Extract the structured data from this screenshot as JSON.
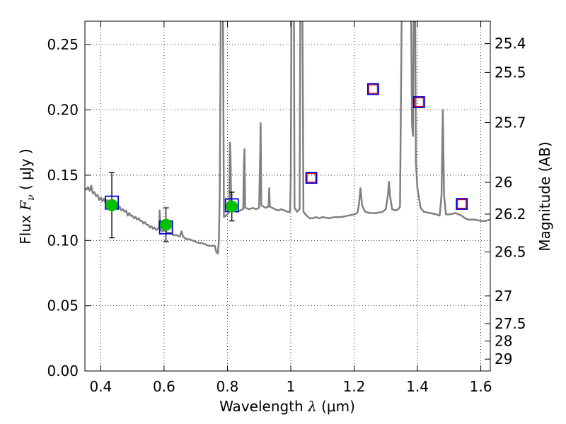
{
  "chart_data": {
    "type": "line",
    "xlabel_prefix": "Wavelength",
    "xlabel_symbol": "λ",
    "xlabel_unit": "(μm)",
    "ylabel_prefix": "Flux",
    "ylabel_symbol": "F",
    "ylabel_subscript": "ν",
    "ylabel_unit": "( μJy )",
    "y2label": "Magnitude (AB)",
    "xlim": [
      0.35,
      1.63
    ],
    "ylim": [
      0.0,
      0.268
    ],
    "x_ticks": [
      0.4,
      0.6,
      0.8,
      1.0,
      1.2,
      1.4,
      1.6
    ],
    "x_tick_labels": [
      "0.4",
      "0.6",
      "0.8",
      "1",
      "1.2",
      "1.4",
      "1.6"
    ],
    "y_ticks": [
      0.0,
      0.05,
      0.1,
      0.15,
      0.2,
      0.25
    ],
    "y_tick_labels": [
      "0.00",
      "0.05",
      "0.10",
      "0.15",
      "0.20",
      "0.25"
    ],
    "mag_ticks": [
      {
        "label": "25.4",
        "flux": 0.2509
      },
      {
        "label": "25.5",
        "flux": 0.2288
      },
      {
        "label": "25.7",
        "flux": 0.1903
      },
      {
        "label": "26",
        "flux": 0.1445
      },
      {
        "label": "26.2",
        "flux": 0.1202
      },
      {
        "label": "26.5",
        "flux": 0.0912
      },
      {
        "label": "27",
        "flux": 0.0575
      },
      {
        "label": "27.5",
        "flux": 0.0363
      },
      {
        "label": "28",
        "flux": 0.0229
      },
      {
        "label": "29",
        "flux": 0.0091
      }
    ],
    "grid": true,
    "colors": {
      "model": "#808080",
      "observed": "#00c000",
      "box": "#0000e0",
      "predicted": "#e00000",
      "errorbar": "#000000"
    },
    "observed_points": [
      {
        "x": 0.435,
        "y": 0.127,
        "yerr": 0.025
      },
      {
        "x": 0.606,
        "y": 0.112,
        "yerr": 0.013
      },
      {
        "x": 0.814,
        "y": 0.126,
        "yerr": 0.011
      }
    ],
    "model_boxes": [
      {
        "x": 0.435,
        "y": 0.129
      },
      {
        "x": 0.606,
        "y": 0.11
      },
      {
        "x": 0.814,
        "y": 0.127
      },
      {
        "x": 1.065,
        "y": 0.148
      },
      {
        "x": 1.26,
        "y": 0.216
      },
      {
        "x": 1.405,
        "y": 0.206
      },
      {
        "x": 1.54,
        "y": 0.128
      }
    ],
    "predicted_points": [
      {
        "x": 1.065,
        "y": 0.148
      },
      {
        "x": 1.26,
        "y": 0.216
      },
      {
        "x": 1.405,
        "y": 0.206
      },
      {
        "x": 1.54,
        "y": 0.128
      }
    ],
    "model_spectrum": [
      [
        0.35,
        0.14
      ],
      [
        0.355,
        0.139
      ],
      [
        0.36,
        0.141
      ],
      [
        0.365,
        0.138
      ],
      [
        0.37,
        0.142
      ],
      [
        0.375,
        0.136
      ],
      [
        0.38,
        0.137
      ],
      [
        0.385,
        0.134
      ],
      [
        0.39,
        0.135
      ],
      [
        0.395,
        0.131
      ],
      [
        0.4,
        0.133
      ],
      [
        0.405,
        0.13
      ],
      [
        0.41,
        0.132
      ],
      [
        0.415,
        0.129
      ],
      [
        0.42,
        0.131
      ],
      [
        0.425,
        0.128
      ],
      [
        0.43,
        0.13
      ],
      [
        0.435,
        0.127
      ],
      [
        0.44,
        0.129
      ],
      [
        0.445,
        0.126
      ],
      [
        0.45,
        0.127
      ],
      [
        0.455,
        0.124
      ],
      [
        0.46,
        0.126
      ],
      [
        0.465,
        0.123
      ],
      [
        0.47,
        0.124
      ],
      [
        0.475,
        0.122
      ],
      [
        0.48,
        0.123
      ],
      [
        0.485,
        0.119
      ],
      [
        0.49,
        0.121
      ],
      [
        0.495,
        0.119
      ],
      [
        0.5,
        0.119
      ],
      [
        0.505,
        0.117
      ],
      [
        0.51,
        0.118
      ],
      [
        0.515,
        0.116
      ],
      [
        0.52,
        0.117
      ],
      [
        0.525,
        0.115
      ],
      [
        0.53,
        0.115
      ],
      [
        0.535,
        0.113
      ],
      [
        0.54,
        0.114
      ],
      [
        0.545,
        0.112
      ],
      [
        0.55,
        0.112
      ],
      [
        0.555,
        0.11
      ],
      [
        0.56,
        0.111
      ],
      [
        0.565,
        0.109
      ],
      [
        0.57,
        0.11
      ],
      [
        0.575,
        0.108
      ],
      [
        0.58,
        0.109
      ],
      [
        0.584,
        0.11
      ],
      [
        0.586,
        0.123
      ],
      [
        0.588,
        0.11
      ],
      [
        0.59,
        0.108
      ],
      [
        0.595,
        0.107
      ],
      [
        0.6,
        0.108
      ],
      [
        0.61,
        0.106
      ],
      [
        0.62,
        0.106
      ],
      [
        0.63,
        0.104
      ],
      [
        0.64,
        0.104
      ],
      [
        0.65,
        0.103
      ],
      [
        0.655,
        0.107
      ],
      [
        0.66,
        0.103
      ],
      [
        0.67,
        0.101
      ],
      [
        0.68,
        0.101
      ],
      [
        0.69,
        0.1
      ],
      [
        0.7,
        0.099
      ],
      [
        0.71,
        0.098
      ],
      [
        0.72,
        0.098
      ],
      [
        0.73,
        0.097
      ],
      [
        0.74,
        0.096
      ],
      [
        0.75,
        0.096
      ],
      [
        0.76,
        0.096
      ],
      [
        0.765,
        0.091
      ],
      [
        0.77,
        0.09
      ],
      [
        0.773,
        0.1
      ],
      [
        0.776,
        0.14
      ],
      [
        0.779,
        0.27
      ],
      [
        0.786,
        0.27
      ],
      [
        0.789,
        0.118
      ],
      [
        0.795,
        0.119
      ],
      [
        0.8,
        0.12
      ],
      [
        0.805,
        0.122
      ],
      [
        0.808,
        0.175
      ],
      [
        0.81,
        0.163
      ],
      [
        0.812,
        0.124
      ],
      [
        0.82,
        0.123
      ],
      [
        0.83,
        0.122
      ],
      [
        0.84,
        0.123
      ],
      [
        0.85,
        0.124
      ],
      [
        0.852,
        0.158
      ],
      [
        0.854,
        0.17
      ],
      [
        0.856,
        0.125
      ],
      [
        0.87,
        0.124
      ],
      [
        0.88,
        0.125
      ],
      [
        0.89,
        0.124
      ],
      [
        0.9,
        0.125
      ],
      [
        0.903,
        0.16
      ],
      [
        0.905,
        0.19
      ],
      [
        0.907,
        0.127
      ],
      [
        0.92,
        0.125
      ],
      [
        0.93,
        0.126
      ],
      [
        0.932,
        0.14
      ],
      [
        0.934,
        0.126
      ],
      [
        0.95,
        0.124
      ],
      [
        0.96,
        0.123
      ],
      [
        0.97,
        0.124
      ],
      [
        0.98,
        0.123
      ],
      [
        0.99,
        0.122
      ],
      [
        0.998,
        0.122
      ],
      [
        1.0,
        0.15
      ],
      [
        1.002,
        0.27
      ],
      [
        1.01,
        0.27
      ],
      [
        1.012,
        0.125
      ],
      [
        1.02,
        0.122
      ],
      [
        1.028,
        0.124
      ],
      [
        1.03,
        0.27
      ],
      [
        1.037,
        0.27
      ],
      [
        1.04,
        0.122
      ],
      [
        1.05,
        0.119
      ],
      [
        1.06,
        0.117
      ],
      [
        1.07,
        0.117
      ],
      [
        1.08,
        0.118
      ],
      [
        1.09,
        0.117
      ],
      [
        1.1,
        0.118
      ],
      [
        1.12,
        0.117
      ],
      [
        1.14,
        0.118
      ],
      [
        1.16,
        0.118
      ],
      [
        1.18,
        0.119
      ],
      [
        1.2,
        0.12
      ],
      [
        1.21,
        0.121
      ],
      [
        1.215,
        0.127
      ],
      [
        1.22,
        0.14
      ],
      [
        1.225,
        0.127
      ],
      [
        1.235,
        0.122
      ],
      [
        1.25,
        0.121
      ],
      [
        1.27,
        0.121
      ],
      [
        1.29,
        0.122
      ],
      [
        1.3,
        0.124
      ],
      [
        1.307,
        0.135
      ],
      [
        1.31,
        0.145
      ],
      [
        1.313,
        0.135
      ],
      [
        1.32,
        0.124
      ],
      [
        1.33,
        0.123
      ],
      [
        1.34,
        0.124
      ],
      [
        1.345,
        0.126
      ],
      [
        1.35,
        0.27
      ],
      [
        1.38,
        0.27
      ],
      [
        1.383,
        0.188
      ],
      [
        1.386,
        0.18
      ],
      [
        1.388,
        0.27
      ],
      [
        1.393,
        0.27
      ],
      [
        1.395,
        0.16
      ],
      [
        1.4,
        0.14
      ],
      [
        1.41,
        0.125
      ],
      [
        1.42,
        0.122
      ],
      [
        1.44,
        0.121
      ],
      [
        1.46,
        0.12
      ],
      [
        1.47,
        0.119
      ],
      [
        1.476,
        0.135
      ],
      [
        1.48,
        0.2
      ],
      [
        1.484,
        0.135
      ],
      [
        1.49,
        0.12
      ],
      [
        1.5,
        0.12
      ],
      [
        1.52,
        0.121
      ],
      [
        1.54,
        0.119
      ],
      [
        1.55,
        0.117
      ],
      [
        1.56,
        0.116
      ],
      [
        1.58,
        0.116
      ],
      [
        1.6,
        0.115
      ],
      [
        1.615,
        0.115
      ],
      [
        1.63,
        0.116
      ]
    ]
  }
}
